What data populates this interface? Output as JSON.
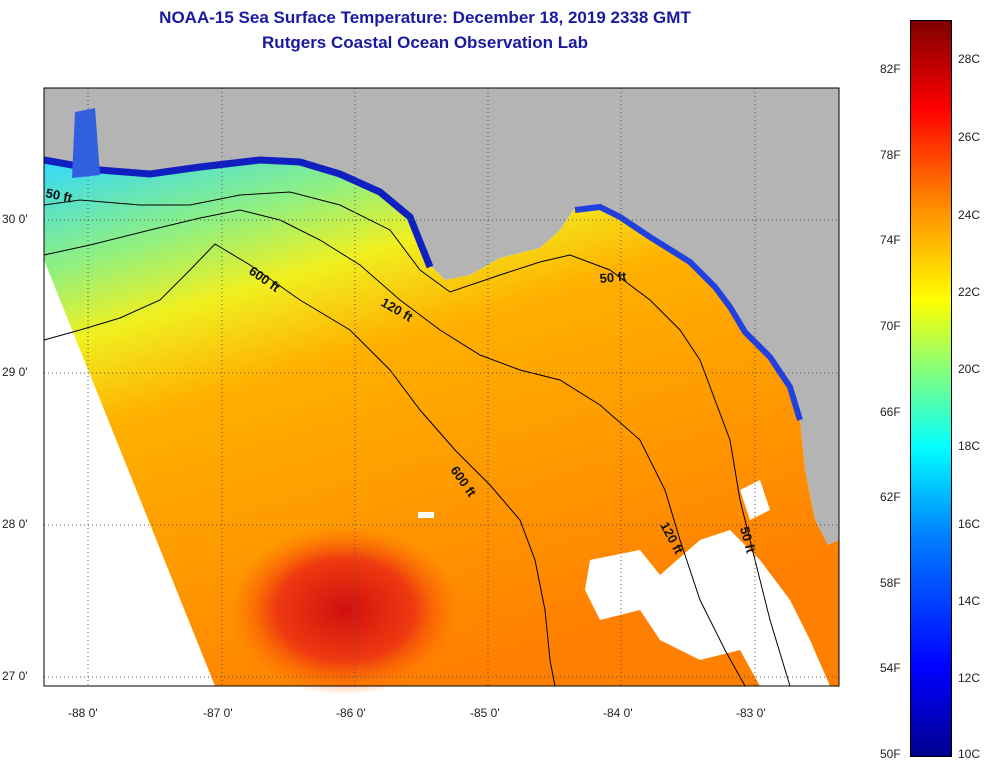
{
  "header": {
    "title": "NOAA-15 Sea Surface Temperature:  December 18, 2019 2338 GMT",
    "subtitle": "Rutgers Coastal Ocean Observation Lab"
  },
  "map": {
    "lat_labels": [
      "30 0'",
      "29 0'",
      "28 0'",
      "27 0'"
    ],
    "lon_labels": [
      "-88 0'",
      "-87 0'",
      "-86 0'",
      "-85 0'",
      "-84 0'",
      "-83 0'"
    ],
    "contour_labels": [
      "50 ft",
      "600 ft",
      "120 ft",
      "50 ft",
      "600 ft",
      "120 ft",
      "50 ft"
    ],
    "land_color": "#b4b4b4",
    "no_data_color": "#ffffff"
  },
  "colorbar": {
    "f_labels": [
      "82F",
      "78F",
      "74F",
      "70F",
      "66F",
      "62F",
      "58F",
      "54F",
      "50F"
    ],
    "c_labels": [
      "28C",
      "26C",
      "24C",
      "22C",
      "20C",
      "18C",
      "16C",
      "14C",
      "12C",
      "10C"
    ],
    "min_color": "#00008f",
    "max_color": "#800000"
  }
}
